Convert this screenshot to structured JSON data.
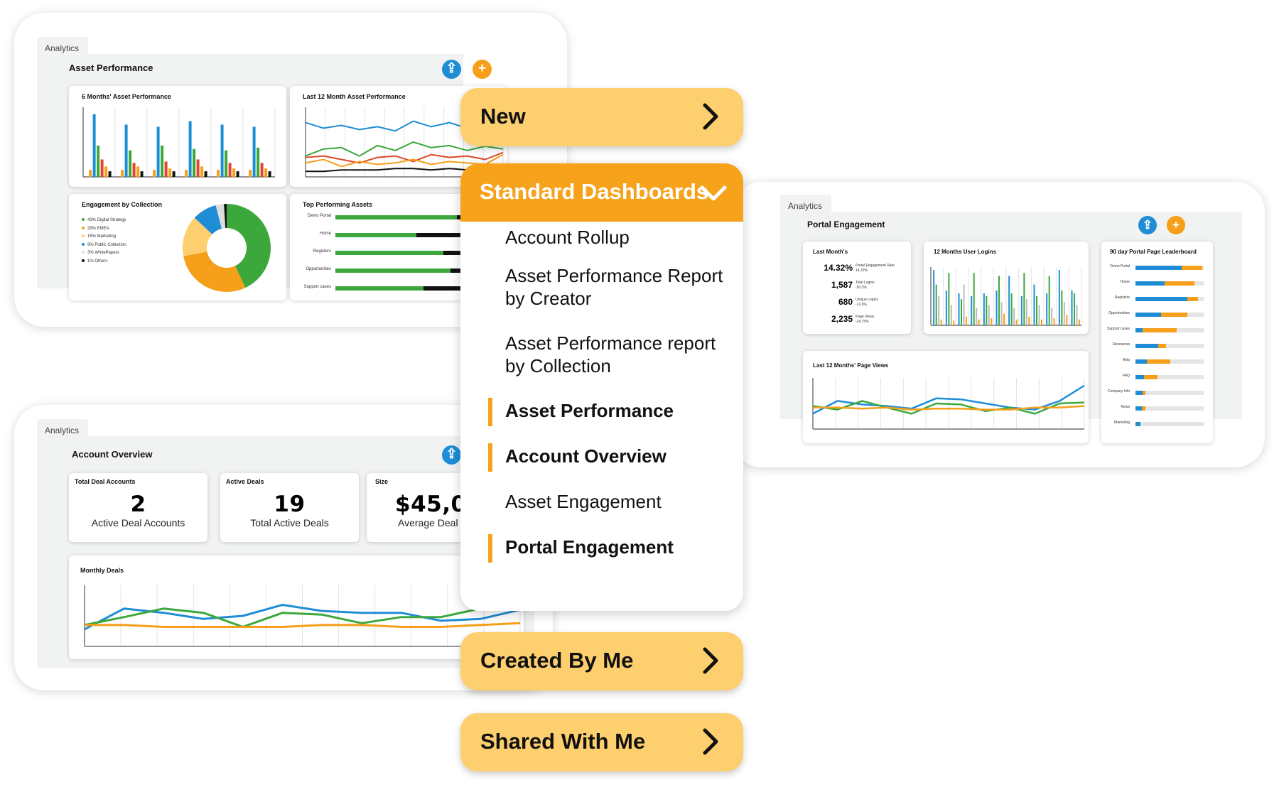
{
  "colors": {
    "blue": "#1f8dd6",
    "orange": "#f59f1a",
    "green": "#3ca83c",
    "red": "#e0472b",
    "black": "#111111",
    "accent": "#f7a21b",
    "menu_bg": "#fdcf6e"
  },
  "icons": {
    "share": "share-icon",
    "add": "plus-icon",
    "chevron_right": "chevron-right-icon",
    "chevron_down": "chevron-down-icon"
  },
  "asset_panel": {
    "tab": "Analytics",
    "title": "Asset Performance",
    "six_months": {
      "title": "6 Months' Asset Performance"
    },
    "last12": {
      "title": "Last 12 Month Asset Performance"
    },
    "engagement": {
      "title": "Engagement by Collection",
      "legend": [
        {
          "label": "43% Digital Strategy",
          "color": "#3ca83c",
          "value": 43
        },
        {
          "label": "29% EMEA",
          "color": "#f59f1a",
          "value": 29
        },
        {
          "label": "15% Marketing",
          "color": "#fdcf6e",
          "value": 15
        },
        {
          "label": "9% Public Collection",
          "color": "#1f8dd6",
          "value": 9
        },
        {
          "label": "3% WhitePapers",
          "color": "#dddddd",
          "value": 3
        },
        {
          "label": "1% Others",
          "color": "#111111",
          "value": 1
        }
      ]
    },
    "top_assets": {
      "title": "Top Performing Assets",
      "rows": [
        {
          "label": "Demo Portal",
          "value": 0.9
        },
        {
          "label": "Home",
          "value": 0.6
        },
        {
          "label": "Registers",
          "value": 0.8
        },
        {
          "label": "Opportunities",
          "value": 0.85
        },
        {
          "label": "Support cases",
          "value": 0.65
        }
      ]
    }
  },
  "account_panel": {
    "tab": "Analytics",
    "title": "Account Overview",
    "stats": [
      {
        "title": "Total Deal Accounts",
        "value": "2",
        "sub": "Active Deal Accounts"
      },
      {
        "title": "Active Deals",
        "value": "19",
        "sub": "Total Active Deals"
      },
      {
        "title": "Size",
        "value": "$45,01",
        "sub": "Average Deal S"
      }
    ],
    "monthly": {
      "title": "Monthly Deals"
    }
  },
  "portal_panel": {
    "tab": "Analytics",
    "title": "Portal Engagement",
    "last_month": {
      "title": "Last Month's",
      "rows": [
        {
          "value": "14.32%",
          "label": "Portal Engagement Rate",
          "delta": "14.32%"
        },
        {
          "value": "1,587",
          "label": "Total Logins",
          "delta": "-50.2%"
        },
        {
          "value": "680",
          "label": "Unique Logins",
          "delta": "-12.6%"
        },
        {
          "value": "2,235",
          "label": "Page Views",
          "delta": "-24.75%"
        }
      ]
    },
    "logins": {
      "title": "12 Months User Logins"
    },
    "page_views": {
      "title": "Last 12 Months' Page Views"
    },
    "leaderboard": {
      "title": "90 day Portal Page Leaderboard",
      "rows": [
        {
          "label": "Demo Portal",
          "blue": 0.68,
          "orange": 0.3
        },
        {
          "label": "Home",
          "blue": 0.43,
          "orange": 0.43
        },
        {
          "label": "Registers",
          "blue": 0.76,
          "orange": 0.16
        },
        {
          "label": "Opportunities",
          "blue": 0.38,
          "orange": 0.38
        },
        {
          "label": "Support cases",
          "blue": 0.1,
          "orange": 0.5
        },
        {
          "label": "Resources",
          "blue": 0.33,
          "orange": 0.12
        },
        {
          "label": "Help",
          "blue": 0.17,
          "orange": 0.34
        },
        {
          "label": "FAQ",
          "blue": 0.12,
          "orange": 0.2
        },
        {
          "label": "Company Info",
          "blue": 0.1,
          "orange": 0.05
        },
        {
          "label": "News",
          "blue": 0.09,
          "orange": 0.06
        },
        {
          "label": "Marketing",
          "blue": 0.07,
          "orange": 0.0
        }
      ]
    }
  },
  "menu": {
    "new_label": "New",
    "standard_label": "Standard Dashboards",
    "standard_items": [
      {
        "label": "Account Rollup",
        "active": false
      },
      {
        "label": "Asset Performance Report by Creator",
        "active": false
      },
      {
        "label": "Asset Performance report by Collection",
        "active": false
      },
      {
        "label": "Asset Performance",
        "active": true
      },
      {
        "label": "Account Overview",
        "active": true
      },
      {
        "label": "Asset Engagement",
        "active": false
      },
      {
        "label": "Portal Engagement",
        "active": true
      }
    ],
    "created_label": "Created By Me",
    "shared_label": "Shared With Me"
  },
  "chart_data": [
    {
      "type": "bar",
      "title": "6 Months' Asset Performance",
      "categories": [
        "1",
        "2",
        "3",
        "4",
        "5",
        "6"
      ],
      "series": [
        {
          "values": [
            0.1,
            0.1,
            0.1,
            0.1,
            0.1,
            0.1
          ]
        },
        {
          "values": [
            0.9,
            0.75,
            0.72,
            0.8,
            0.75,
            0.72
          ]
        },
        {
          "values": [
            0.45,
            0.38,
            0.45,
            0.4,
            0.38,
            0.42
          ]
        },
        {
          "values": [
            0.25,
            0.2,
            0.22,
            0.25,
            0.2,
            0.2
          ]
        },
        {
          "values": [
            0.15,
            0.15,
            0.12,
            0.15,
            0.12,
            0.12
          ]
        },
        {
          "values": [
            0.08,
            0.08,
            0.08,
            0.08,
            0.08,
            0.08
          ]
        }
      ]
    },
    {
      "type": "line",
      "title": "Last 12 Month Asset Performance",
      "x": [
        1,
        2,
        3,
        4,
        5,
        6,
        7,
        8,
        9,
        10,
        11,
        12
      ],
      "series": [
        {
          "values": [
            0.78,
            0.7,
            0.74,
            0.68,
            0.72,
            0.66,
            0.8,
            0.72,
            0.78,
            0.7,
            0.74,
            0.72
          ]
        },
        {
          "values": [
            0.3,
            0.4,
            0.42,
            0.3,
            0.45,
            0.38,
            0.5,
            0.42,
            0.45,
            0.38,
            0.44,
            0.4
          ]
        },
        {
          "values": [
            0.28,
            0.3,
            0.25,
            0.2,
            0.28,
            0.3,
            0.22,
            0.32,
            0.28,
            0.3,
            0.25,
            0.35
          ]
        },
        {
          "values": [
            0.2,
            0.25,
            0.15,
            0.22,
            0.18,
            0.2,
            0.25,
            0.18,
            0.22,
            0.2,
            0.18,
            0.32
          ]
        },
        {
          "values": [
            0.08,
            0.08,
            0.1,
            0.1,
            0.1,
            0.12,
            0.12,
            0.1,
            0.12,
            0.1,
            0.08,
            0.1
          ]
        }
      ]
    },
    {
      "type": "pie",
      "title": "Engagement by Collection",
      "categories": [
        "43% Digital Strategy",
        "29% EMEA",
        "15% Marketing",
        "9% Public Collection",
        "3% WhitePapers",
        "1% Others"
      ],
      "values": [
        43,
        29,
        15,
        9,
        3,
        1
      ]
    },
    {
      "type": "line",
      "title": "Monthly Deals",
      "x": [
        1,
        2,
        3,
        4,
        5,
        6,
        7,
        8,
        9,
        10,
        11,
        12
      ],
      "series": [
        {
          "values": [
            0.28,
            0.62,
            0.55,
            0.45,
            0.5,
            0.68,
            0.58,
            0.55,
            0.55,
            0.42,
            0.45,
            0.6
          ]
        },
        {
          "values": [
            0.35,
            0.48,
            0.62,
            0.55,
            0.32,
            0.55,
            0.52,
            0.38,
            0.48,
            0.48,
            0.62,
            0.68
          ]
        },
        {
          "values": [
            0.35,
            0.35,
            0.32,
            0.32,
            0.32,
            0.32,
            0.35,
            0.35,
            0.32,
            0.32,
            0.35,
            0.38
          ]
        }
      ]
    },
    {
      "type": "bar",
      "title": "12 Months User Logins",
      "categories": [
        "1",
        "2",
        "3",
        "4",
        "5",
        "6",
        "7",
        "8",
        "9",
        "10",
        "11",
        "12"
      ],
      "series": [
        {
          "values": [
            0.95,
            0.6,
            0.55,
            0.5,
            0.55,
            0.6,
            0.85,
            0.5,
            0.7,
            0.55,
            0.95,
            0.6
          ]
        },
        {
          "values": [
            0.7,
            0.9,
            0.45,
            0.9,
            0.5,
            0.85,
            0.55,
            0.9,
            0.5,
            0.85,
            0.6,
            0.55
          ]
        },
        {
          "values": [
            0.5,
            0.35,
            0.7,
            0.3,
            0.35,
            0.4,
            0.3,
            0.45,
            0.35,
            0.3,
            0.4,
            0.35
          ]
        },
        {
          "values": [
            0.1,
            0.08,
            0.15,
            0.1,
            0.12,
            0.2,
            0.1,
            0.15,
            0.1,
            0.12,
            0.18,
            0.1
          ]
        }
      ]
    },
    {
      "type": "line",
      "title": "Last 12 Months' Page Views",
      "x": [
        1,
        2,
        3,
        4,
        5,
        6,
        7,
        8,
        9,
        10,
        11,
        12
      ],
      "series": [
        {
          "values": [
            0.3,
            0.55,
            0.48,
            0.45,
            0.4,
            0.6,
            0.58,
            0.5,
            0.42,
            0.38,
            0.55,
            0.85
          ]
        },
        {
          "values": [
            0.45,
            0.38,
            0.55,
            0.42,
            0.3,
            0.5,
            0.48,
            0.35,
            0.42,
            0.3,
            0.5,
            0.52
          ]
        },
        {
          "values": [
            0.42,
            0.42,
            0.4,
            0.42,
            0.38,
            0.4,
            0.4,
            0.38,
            0.38,
            0.42,
            0.42,
            0.45
          ]
        }
      ]
    }
  ]
}
